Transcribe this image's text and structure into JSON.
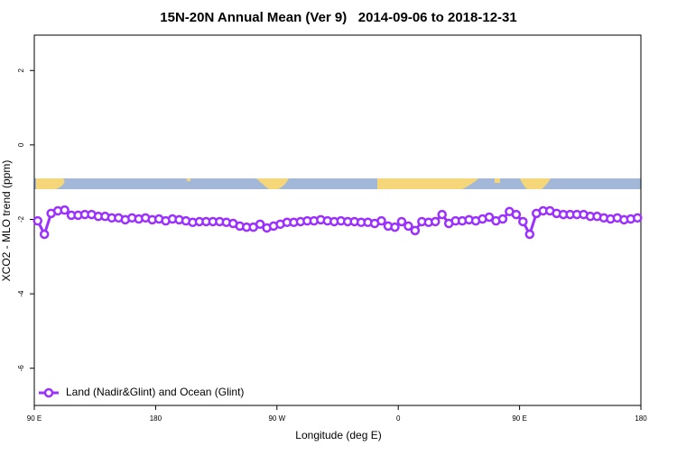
{
  "chart_data": {
    "type": "line",
    "title": "15N-20N Annual Mean (Ver 9)   2014-09-06 to 2018-12-31",
    "x_label": "Longitude (deg E)",
    "y_label": "XCO2 - MLO trend (ppm)",
    "xlim": [
      90,
      540
    ],
    "xticks": [
      {
        "value": 90,
        "label": "90 E"
      },
      180,
      {
        "value": 270,
        "label": "90 W"
      },
      {
        "value": 360,
        "label": "0"
      },
      {
        "value": 450,
        "label": "90 E"
      },
      {
        "value": 540,
        "label": "180"
      }
    ],
    "ylim": [
      -7,
      2.95
    ],
    "yticks": [
      -6,
      -4,
      -2,
      0,
      2
    ],
    "legend": "bottom-left",
    "x": [
      92.5,
      97.5,
      102.5,
      107.5,
      112.5,
      117.5,
      122.5,
      127.5,
      132.5,
      137.5,
      142.5,
      147.5,
      152.5,
      157.5,
      162.5,
      167.5,
      172.5,
      177.5,
      182.5,
      187.5,
      192.5,
      197.5,
      202.5,
      207.5,
      212.5,
      217.5,
      222.5,
      227.5,
      232.5,
      237.5,
      242.5,
      247.5,
      252.5,
      257.5,
      262.5,
      267.5,
      272.5,
      277.5,
      282.5,
      287.5,
      292.5,
      297.5,
      302.5,
      307.5,
      312.5,
      317.5,
      322.5,
      327.5,
      332.5,
      337.5,
      342.5,
      347.5,
      352.5,
      357.5,
      362.5,
      367.5,
      372.5,
      377.5,
      382.5,
      387.5,
      392.5,
      397.5,
      402.5,
      407.5,
      412.5,
      417.5,
      422.5,
      427.5,
      432.5,
      437.5,
      442.5,
      447.5,
      452.5,
      457.5,
      462.5,
      467.5,
      472.5,
      477.5,
      482.5,
      487.5,
      492.5,
      497.5,
      502.5,
      507.5,
      512.5,
      517.5,
      522.5,
      527.5,
      532.5,
      537.5
    ],
    "series": [
      {
        "name": "Land (Nadir&Glint) and Ocean (Glint)",
        "color": "#9b30ff",
        "values": [
          -2.04,
          -2.4,
          -1.84,
          -1.77,
          -1.75,
          -1.89,
          -1.89,
          -1.87,
          -1.87,
          -1.92,
          -1.92,
          -1.96,
          -1.96,
          -2.01,
          -1.96,
          -1.99,
          -1.96,
          -2.01,
          -1.99,
          -2.04,
          -1.99,
          -2.01,
          -2.04,
          -2.08,
          -2.06,
          -2.06,
          -2.06,
          -2.06,
          -2.08,
          -2.11,
          -2.18,
          -2.21,
          -2.21,
          -2.13,
          -2.23,
          -2.18,
          -2.13,
          -2.08,
          -2.08,
          -2.06,
          -2.04,
          -2.04,
          -2.01,
          -2.04,
          -2.06,
          -2.04,
          -2.06,
          -2.06,
          -2.08,
          -2.08,
          -2.11,
          -2.04,
          -2.18,
          -2.21,
          -2.06,
          -2.18,
          -2.3,
          -2.06,
          -2.08,
          -2.06,
          -1.87,
          -2.11,
          -2.04,
          -2.04,
          -2.01,
          -2.04,
          -1.99,
          -1.94,
          -2.04,
          -1.99,
          -1.79,
          -1.87,
          -2.06,
          -2.4,
          -1.84,
          -1.77,
          -1.77,
          -1.84,
          -1.87,
          -1.87,
          -1.87,
          -1.87,
          -1.92,
          -1.92,
          -1.96,
          -1.99,
          -1.96,
          -2.01,
          -1.99,
          -1.96
        ]
      }
    ]
  }
}
